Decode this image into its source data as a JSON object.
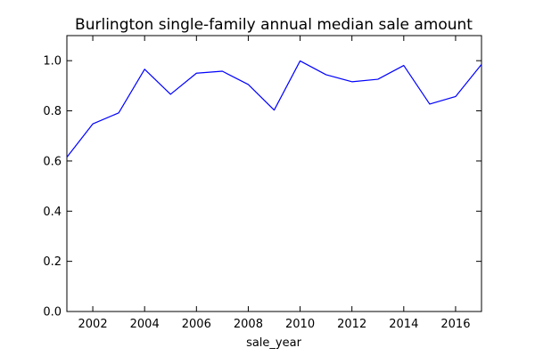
{
  "chart_data": {
    "type": "line",
    "title": "Burlington single-family annual median sale amount",
    "xlabel": "sale_year",
    "ylabel": "",
    "xlim": [
      2001,
      2017
    ],
    "ylim": [
      0.0,
      1.1
    ],
    "grid": false,
    "x_ticks": [
      2002,
      2004,
      2006,
      2008,
      2010,
      2012,
      2014,
      2016
    ],
    "x_tick_labels": [
      "2002",
      "2004",
      "2006",
      "2008",
      "2010",
      "2012",
      "2014",
      "2016"
    ],
    "y_ticks": [
      0.0,
      0.2,
      0.4,
      0.6,
      0.8,
      1.0
    ],
    "y_tick_labels": [
      "0.0",
      "0.2",
      "0.4",
      "0.6",
      "0.8",
      "1.0"
    ],
    "series": [
      {
        "color": "#0000ff",
        "x": [
          2001,
          2002,
          2003,
          2004,
          2005,
          2006,
          2007,
          2008,
          2009,
          2010,
          2011,
          2012,
          2013,
          2014,
          2015,
          2016,
          2017
        ],
        "y": [
          0.615,
          0.748,
          0.792,
          0.966,
          0.866,
          0.95,
          0.958,
          0.905,
          0.803,
          0.999,
          0.944,
          0.916,
          0.926,
          0.981,
          0.827,
          0.857,
          0.985
        ]
      }
    ]
  }
}
